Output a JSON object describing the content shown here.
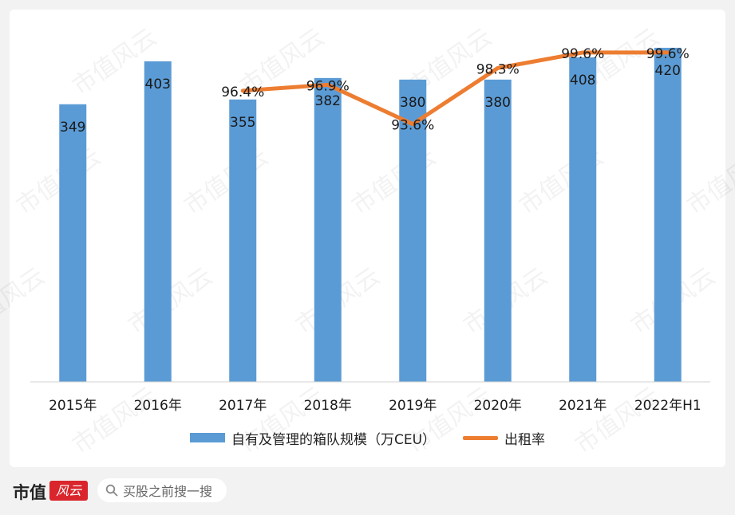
{
  "chart_data": {
    "type": "bar+line",
    "categories": [
      "2015年",
      "2016年",
      "2017年",
      "2018年",
      "2019年",
      "2020年",
      "2021年",
      "2022年H1"
    ],
    "series": [
      {
        "name": "自有及管理的箱队规模（万CEU）",
        "type": "bar",
        "values": [
          349,
          403,
          355,
          382,
          380,
          380,
          408,
          420
        ],
        "color": "#5b9bd5"
      },
      {
        "name": "出租率",
        "type": "line",
        "values": [
          null,
          null,
          96.4,
          96.9,
          93.6,
          98.3,
          99.6,
          99.6
        ],
        "labels": [
          "",
          "",
          "96.4%",
          "96.9%",
          "93.6%",
          "98.3%",
          "99.6%",
          "99.6%"
        ],
        "color": "#ed7d31"
      }
    ],
    "bar_ylim": [
      0,
      450
    ],
    "line_ylim": [
      72,
      102
    ],
    "grid": false,
    "legend_position": "bottom"
  },
  "watermark": "市值风云",
  "footer": {
    "brand_text": "市值",
    "brand_badge": "风云",
    "search_placeholder": "买股之前搜一搜"
  }
}
